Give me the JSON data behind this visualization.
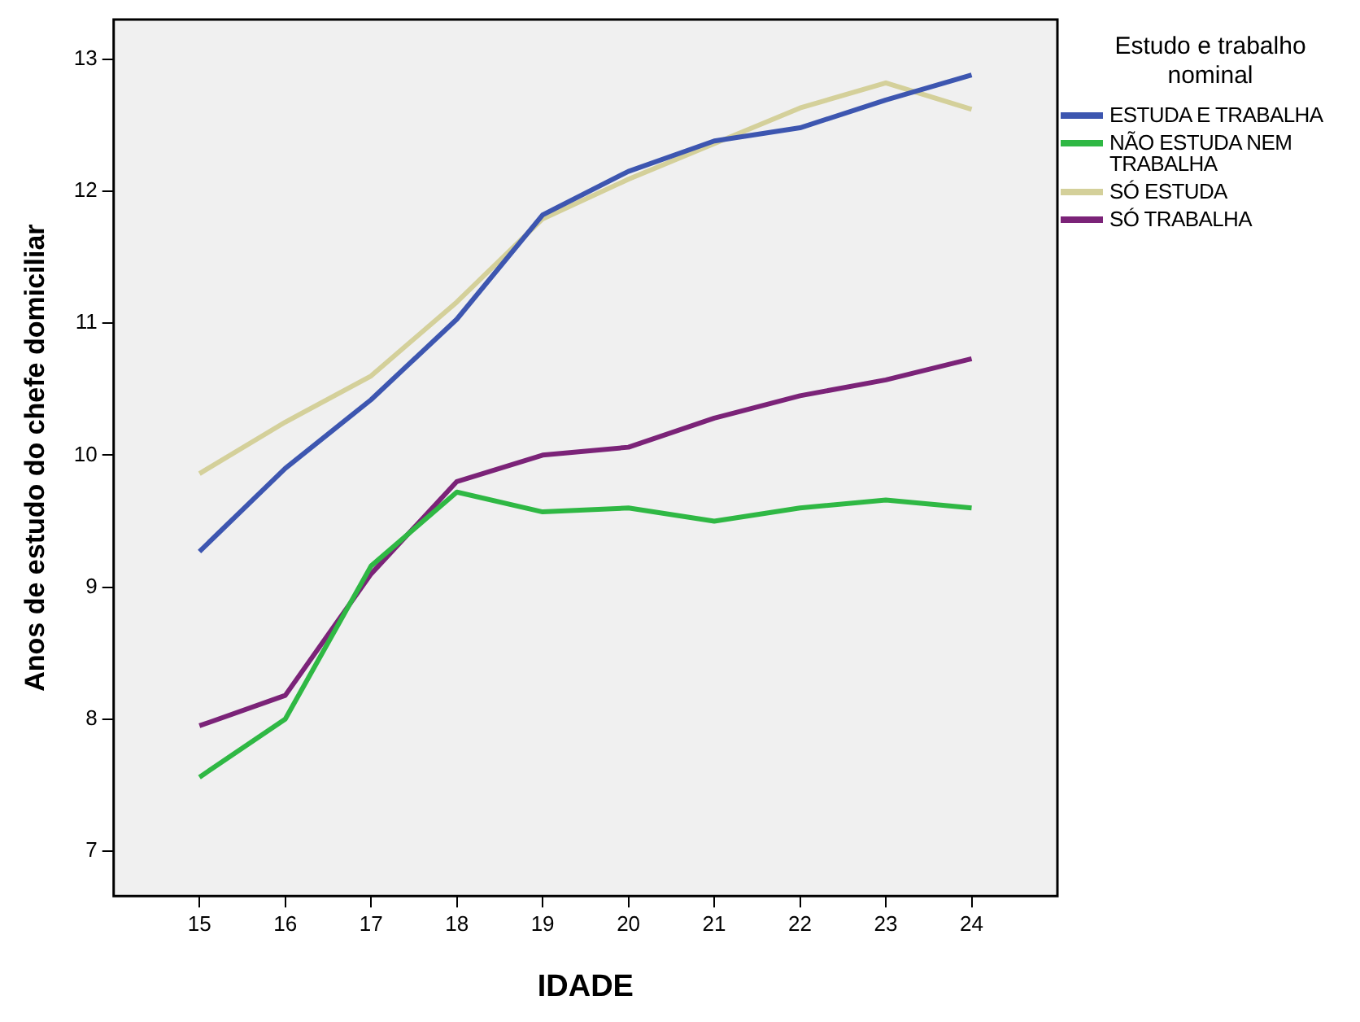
{
  "chart_data": {
    "type": "line",
    "xlabel": "IDADE",
    "ylabel": "Anos de estudo do chefe domiciliar",
    "legend_title": "Estudo e trabalho nominal",
    "x": [
      15,
      16,
      17,
      18,
      19,
      20,
      21,
      22,
      23,
      24
    ],
    "series": [
      {
        "name": "ESTUDA E TRABALHA",
        "color": "#3d56b0",
        "values": [
          9.27,
          9.9,
          10.42,
          11.03,
          11.82,
          12.15,
          12.38,
          12.48,
          12.69,
          12.88
        ]
      },
      {
        "name": "NÃO ESTUDA NEM TRABALHA",
        "color": "#2fb844",
        "values": [
          7.56,
          8.0,
          9.16,
          9.72,
          9.57,
          9.6,
          9.5,
          9.6,
          9.66,
          9.6
        ]
      },
      {
        "name": "SÓ ESTUDA",
        "color": "#d4d09a",
        "values": [
          9.86,
          10.25,
          10.6,
          11.16,
          11.79,
          12.09,
          12.36,
          12.63,
          12.82,
          12.62
        ]
      },
      {
        "name": "SÓ TRABALHA",
        "color": "#7b2378",
        "values": [
          7.95,
          8.18,
          9.1,
          9.8,
          10.0,
          10.06,
          10.28,
          10.45,
          10.57,
          10.73
        ]
      }
    ],
    "xlim": [
      14,
      25
    ],
    "xticks": [
      15,
      16,
      17,
      18,
      19,
      20,
      21,
      22,
      23,
      24
    ],
    "ylim": [
      6.66,
      13.3
    ],
    "yticks": [
      7,
      8,
      9,
      10,
      11,
      12,
      13
    ],
    "grid": false,
    "legend": "right",
    "marker": "none",
    "line_style": "solid"
  }
}
